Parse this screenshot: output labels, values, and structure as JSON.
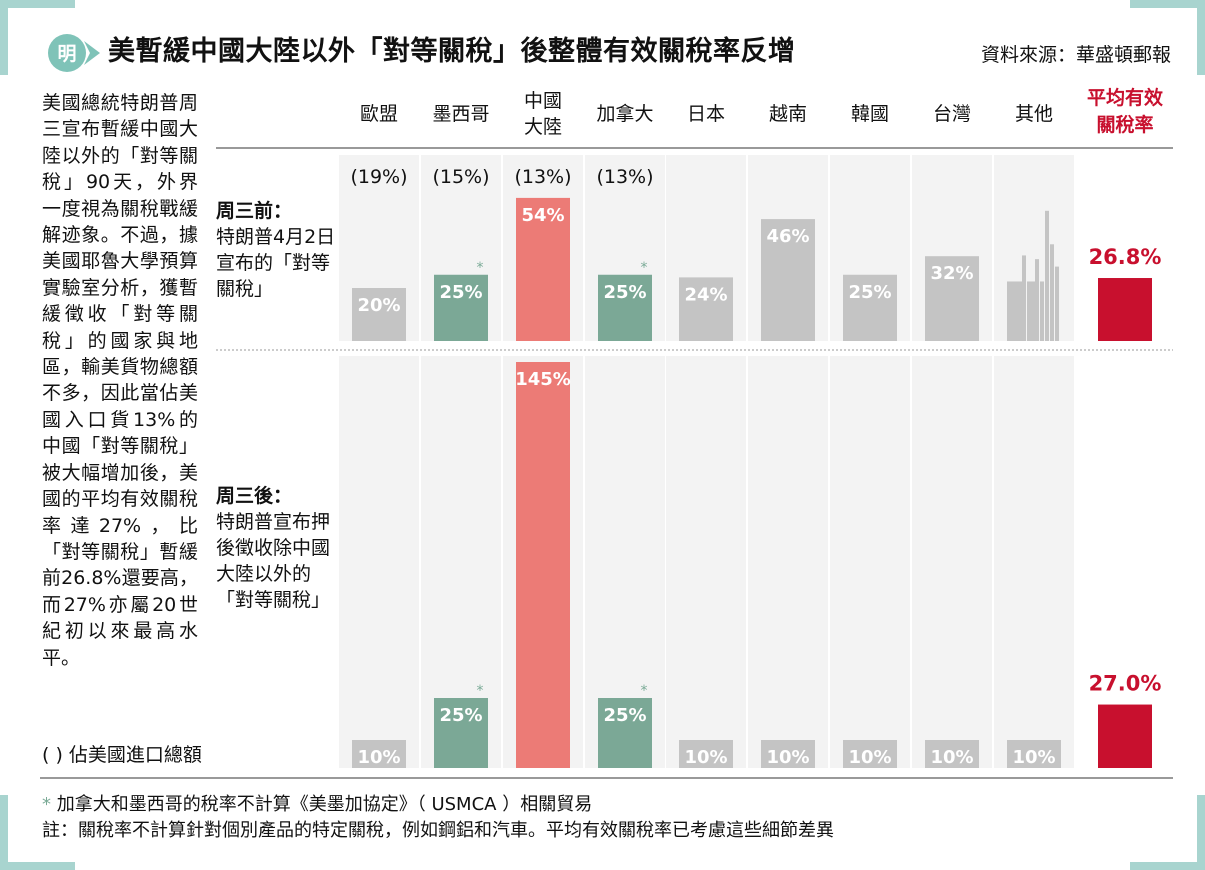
{
  "header": {
    "logo": "明",
    "title": "美暫緩中國大陸以外「對等關稅」後整體有效關稅率反增",
    "source": "資料來源：華盛頓郵報"
  },
  "sidebar": {
    "text": "美國總統特朗普周三宣布暫緩中國大陸以外的「對等關稅」90天，外界一度視為關稅戰緩解迹象。不過，據美國耶魯大學預算實驗室分析，獲暫緩徵收「對等關稅」的國家與地區，輸美貨物總額不多，因此當佔美國入口貨13%的中國「對等關稅」被大幅增加後，美國的平均有效關稅率達27%，比「對等關稅」暫緩前26.8%還要高，而27%亦屬20世紀初以來最高水平。",
    "legend_note": "(  )  佔美國進口總額"
  },
  "rows": {
    "before": {
      "title": "周三前：",
      "desc": "特朗普4月2日宣布的「對等關稅」"
    },
    "after": {
      "title": "周三後：",
      "desc": "特朗普宣布押後徵收除中國大陸以外的「對等關稅」"
    }
  },
  "footnote": {
    "star_line": "加拿大和墨西哥的稅率不計算《美墨加協定》（ USMCA ）相關貿易",
    "note_line": "註：關稅率不計算針對個別產品的特定關稅，例如鋼鋁和汽車。平均有效關稅率已考慮這些細節差異"
  },
  "colors": {
    "gray_bar": "#c4c4c4",
    "green_bar": "#7ba896",
    "red_bar": "#ec7b76",
    "avg_bar": "#c8102e",
    "column_bg": "#f3f3f3",
    "star": "#7aaa96"
  },
  "chart_data": {
    "type": "bar",
    "categories": [
      "歐盟",
      "墨西哥",
      "中國\n大陸",
      "加拿大",
      "日本",
      "越南",
      "韓國",
      "台灣",
      "其他"
    ],
    "import_share": [
      "(19%)",
      "(15%)",
      "(13%)",
      "(13%)",
      "",
      "",
      "",
      "",
      ""
    ],
    "series": [
      {
        "name": "周三前",
        "values": [
          20,
          25,
          54,
          25,
          24,
          46,
          25,
          32,
          null
        ],
        "labels": [
          "20%",
          "25%",
          "54%",
          "25%",
          "24%",
          "46%",
          "25%",
          "32%",
          ""
        ],
        "starred": [
          false,
          true,
          false,
          true,
          false,
          false,
          false,
          false,
          false
        ],
        "average": 26.8,
        "average_label": "26.8%"
      },
      {
        "name": "周三後",
        "values": [
          10,
          25,
          145,
          25,
          10,
          10,
          10,
          10,
          10
        ],
        "labels": [
          "10%",
          "25%",
          "145%",
          "25%",
          "10%",
          "10%",
          "10%",
          "10%",
          "10%"
        ],
        "starred": [
          false,
          true,
          false,
          true,
          false,
          false,
          false,
          false,
          false
        ],
        "average": 27.0,
        "average_label": "27.0%"
      }
    ],
    "bar_colors": [
      "gray",
      "green",
      "red",
      "green",
      "gray",
      "gray",
      "gray",
      "gray",
      "gray"
    ],
    "average_header": "平均有效\n關稅率",
    "star_symbol": "*"
  }
}
